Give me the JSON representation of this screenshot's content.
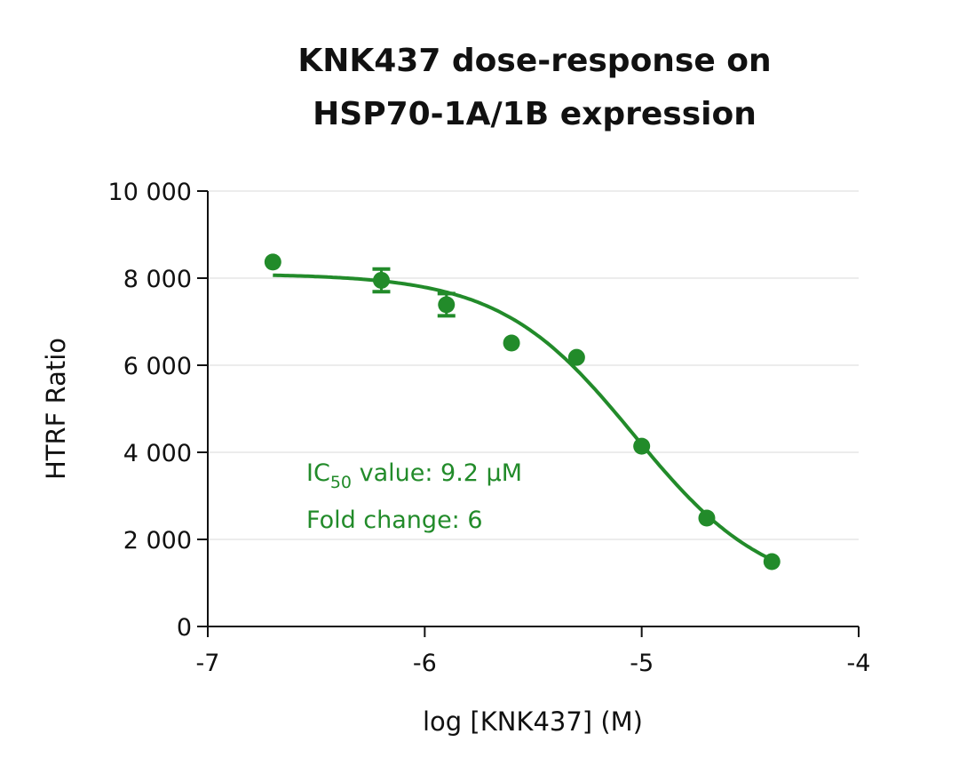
{
  "chart_data": {
    "type": "scatter",
    "title_lines": [
      "KNK437 dose-response on",
      "HSP70-1A/1B expression"
    ],
    "xlabel": "log [KNK437] (M)",
    "ylabel": "HTRF Ratio",
    "xlim": [
      -7,
      -4
    ],
    "ylim": [
      0,
      10000
    ],
    "x_ticks": [
      -7,
      -6,
      -5,
      -4
    ],
    "x_tick_labels": [
      "-7",
      "-6",
      "-5",
      "-4"
    ],
    "y_ticks": [
      0,
      2000,
      4000,
      6000,
      8000,
      10000
    ],
    "y_tick_labels": [
      "0",
      "2 000",
      "4 000",
      "6 000",
      "8 000",
      "10 000"
    ],
    "grid": "horizontal",
    "color": "#228b2a",
    "series": [
      {
        "x": [
          -6.7,
          -6.2,
          -5.9,
          -5.6,
          -5.3,
          -5.0,
          -4.7,
          -4.4
        ],
        "y": [
          8370,
          7950,
          7390,
          6510,
          6180,
          4140,
          2490,
          1490
        ],
        "error": [
          0,
          260,
          255,
          0,
          0,
          0,
          0,
          0
        ]
      }
    ],
    "fit_curve": {
      "model": "4PL",
      "top": 8100,
      "bottom": 700,
      "log_ic50": -5.036,
      "hill": 1.41,
      "x_range": [
        -6.7,
        -4.4
      ]
    },
    "annotations": {
      "ic50_prefix": "IC",
      "ic50_sub": "50",
      "ic50_rest": " value: 9.2 µM",
      "fold_change": "Fold change: 6"
    }
  }
}
